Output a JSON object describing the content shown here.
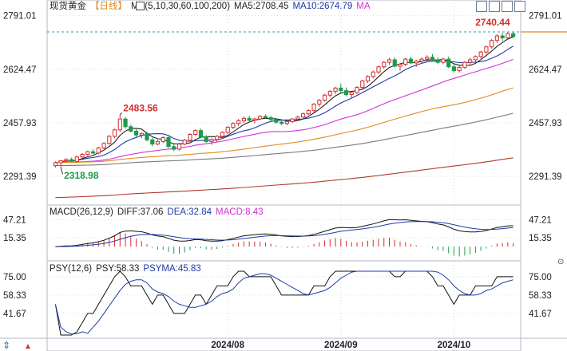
{
  "header": {
    "title": "现货黄金",
    "period": "【日线】",
    "ma_label": "MA(5,10,30,60,100,200)",
    "ma5": "MA5:2708.45",
    "ma10": "MA10:2674.79",
    "ma_extra": "MA"
  },
  "macd_header": {
    "label": "MACD(26,12,9)",
    "diff": "DIFF:37.06",
    "dea": "DEA:32.84",
    "macd": "MACD:8.43"
  },
  "psy_header": {
    "label": "PSY(12,6)",
    "psy": "PSY:58.33",
    "psyma": "PSYMA:45.83"
  },
  "toolbar": {
    "icon_names": [
      "chart-toggle-icon",
      "tile-icon",
      "bars-icon",
      "restore-icon",
      "close-icon"
    ]
  },
  "footer_icons": {
    "left_icon": "arrow-icon",
    "right_icon": "caret-up-icon"
  },
  "colors": {
    "up": "#d03030",
    "down": "#1f9a4a",
    "ma5": "#222222",
    "ma10": "#1e3aa8",
    "ma30": "#d233d2",
    "ma60": "#e08a1e",
    "ma100": "#7a7a7a",
    "ma200": "#b23a2c",
    "dea": "#1e3aa8",
    "diff": "#111111",
    "macd_text": "#d233d2",
    "psy": "#111111",
    "psyma": "#1e3aa8",
    "current_line": "#2a9fa8",
    "current_line_right": "#e08a1e",
    "label_up": "#d03030",
    "label_down": "#1f9a4a"
  },
  "chart_data": [
    {
      "type": "candlestick",
      "name": "price",
      "y_ticks": [
        "2791.01",
        "2624.47",
        "2457.93",
        "2291.39"
      ],
      "ylim": [
        2210,
        2800
      ],
      "x_labels": [
        "2024/08",
        "2024/09",
        "2024/10"
      ],
      "x_label_index": [
        32,
        53,
        74
      ],
      "annotations": {
        "high": {
          "text": "2483.56",
          "index": 12,
          "value": 2483.56
        },
        "low": {
          "text": "2318.98",
          "index": 1,
          "value": 2318.98
        },
        "last_high": {
          "text": "2740.44",
          "index": 85,
          "value": 2740.44
        }
      },
      "current_value": 2740.44,
      "ohlc": [
        [
          2325,
          2338,
          2319,
          2334
        ],
        [
          2334,
          2342,
          2318.98,
          2340
        ],
        [
          2340,
          2348,
          2333,
          2344
        ],
        [
          2344,
          2350,
          2336,
          2338
        ],
        [
          2338,
          2356,
          2335,
          2352
        ],
        [
          2352,
          2364,
          2348,
          2360
        ],
        [
          2360,
          2372,
          2355,
          2368
        ],
        [
          2368,
          2376,
          2360,
          2364
        ],
        [
          2364,
          2384,
          2360,
          2380
        ],
        [
          2380,
          2398,
          2376,
          2394
        ],
        [
          2394,
          2420,
          2390,
          2416
        ],
        [
          2416,
          2440,
          2410,
          2436
        ],
        [
          2436,
          2483.56,
          2430,
          2470
        ],
        [
          2470,
          2476,
          2440,
          2446
        ],
        [
          2446,
          2452,
          2428,
          2432
        ],
        [
          2432,
          2438,
          2415,
          2420
        ],
        [
          2420,
          2428,
          2410,
          2425
        ],
        [
          2425,
          2430,
          2400,
          2405
        ],
        [
          2405,
          2412,
          2385,
          2392
        ],
        [
          2392,
          2405,
          2388,
          2400
        ],
        [
          2400,
          2416,
          2395,
          2412
        ],
        [
          2412,
          2418,
          2380,
          2384
        ],
        [
          2384,
          2392,
          2370,
          2376
        ],
        [
          2376,
          2396,
          2372,
          2392
        ],
        [
          2392,
          2408,
          2388,
          2404
        ],
        [
          2404,
          2426,
          2400,
          2422
        ],
        [
          2422,
          2438,
          2418,
          2434
        ],
        [
          2434,
          2440,
          2410,
          2414
        ],
        [
          2414,
          2420,
          2396,
          2400
        ],
        [
          2400,
          2410,
          2390,
          2406
        ],
        [
          2406,
          2420,
          2398,
          2416
        ],
        [
          2416,
          2432,
          2410,
          2428
        ],
        [
          2428,
          2448,
          2424,
          2444
        ],
        [
          2444,
          2460,
          2438,
          2456
        ],
        [
          2456,
          2470,
          2448,
          2464
        ],
        [
          2464,
          2478,
          2458,
          2472
        ],
        [
          2472,
          2480,
          2460,
          2466
        ],
        [
          2466,
          2474,
          2456,
          2470
        ],
        [
          2470,
          2482,
          2466,
          2478
        ],
        [
          2478,
          2484,
          2470,
          2474
        ],
        [
          2474,
          2480,
          2462,
          2468
        ],
        [
          2468,
          2474,
          2455,
          2460
        ],
        [
          2460,
          2468,
          2450,
          2456
        ],
        [
          2456,
          2466,
          2450,
          2462
        ],
        [
          2462,
          2472,
          2458,
          2470
        ],
        [
          2470,
          2480,
          2464,
          2476
        ],
        [
          2476,
          2490,
          2472,
          2486
        ],
        [
          2486,
          2500,
          2482,
          2496
        ],
        [
          2496,
          2520,
          2490,
          2516
        ],
        [
          2516,
          2532,
          2508,
          2528
        ],
        [
          2528,
          2548,
          2524,
          2544
        ],
        [
          2544,
          2560,
          2538,
          2556
        ],
        [
          2556,
          2570,
          2548,
          2566
        ],
        [
          2566,
          2580,
          2552,
          2558
        ],
        [
          2558,
          2568,
          2540,
          2546
        ],
        [
          2546,
          2556,
          2536,
          2552
        ],
        [
          2552,
          2572,
          2548,
          2568
        ],
        [
          2568,
          2592,
          2564,
          2588
        ],
        [
          2588,
          2606,
          2582,
          2602
        ],
        [
          2602,
          2620,
          2596,
          2616
        ],
        [
          2616,
          2636,
          2610,
          2632
        ],
        [
          2632,
          2650,
          2626,
          2646
        ],
        [
          2646,
          2660,
          2638,
          2654
        ],
        [
          2654,
          2662,
          2630,
          2634
        ],
        [
          2634,
          2644,
          2620,
          2640
        ],
        [
          2640,
          2660,
          2634,
          2656
        ],
        [
          2656,
          2664,
          2640,
          2644
        ],
        [
          2644,
          2654,
          2632,
          2650
        ],
        [
          2650,
          2662,
          2644,
          2656
        ],
        [
          2656,
          2668,
          2648,
          2662
        ],
        [
          2662,
          2672,
          2650,
          2654
        ],
        [
          2654,
          2662,
          2640,
          2646
        ],
        [
          2646,
          2660,
          2640,
          2656
        ],
        [
          2656,
          2664,
          2628,
          2632
        ],
        [
          2632,
          2640,
          2614,
          2620
        ],
        [
          2620,
          2636,
          2614,
          2630
        ],
        [
          2630,
          2650,
          2626,
          2646
        ],
        [
          2646,
          2660,
          2638,
          2654
        ],
        [
          2654,
          2668,
          2646,
          2664
        ],
        [
          2664,
          2682,
          2658,
          2678
        ],
        [
          2678,
          2698,
          2672,
          2694
        ],
        [
          2694,
          2718,
          2688,
          2714
        ],
        [
          2714,
          2734,
          2706,
          2728
        ],
        [
          2728,
          2738,
          2712,
          2722
        ],
        [
          2722,
          2740.44,
          2716,
          2735
        ],
        [
          2735,
          2740.44,
          2722,
          2726
        ]
      ]
    },
    {
      "type": "bar+line",
      "name": "MACD(26,12,9)",
      "y_ticks": [
        "47.21",
        "15.35"
      ],
      "ylim": [
        -18,
        55
      ],
      "last": {
        "diff": 37.06,
        "dea": 32.84,
        "macd": 8.43
      }
    },
    {
      "type": "line",
      "name": "PSY(12,6)",
      "y_ticks": [
        "75.00",
        "58.33",
        "41.67"
      ],
      "ylim": [
        22,
        80
      ],
      "last": {
        "psy": 58.33,
        "psyma": 45.83
      }
    }
  ]
}
